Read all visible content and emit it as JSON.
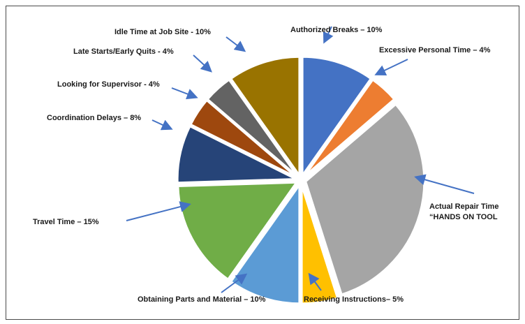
{
  "chart_data": {
    "type": "pie",
    "title": "",
    "slices": [
      {
        "label": "Authorized Breaks – 10%",
        "value": 10,
        "color": "#4472c4"
      },
      {
        "label": "Excessive Personal Time – 4%",
        "value": 4,
        "color": "#ed7d31"
      },
      {
        "label": "Actual Repair Time",
        "label2": "“HANDS ON TOOL",
        "value": 32,
        "color": "#a5a5a5"
      },
      {
        "label": "Receiving Instructions– 5%",
        "value": 5,
        "color": "#ffc000"
      },
      {
        "label": "Obtaining Parts and Material – 10%",
        "value": 10,
        "color": "#5b9bd5"
      },
      {
        "label": "Travel Time – 15%",
        "value": 15,
        "color": "#70ad47"
      },
      {
        "label": "Coordination Delays – 8%",
        "value": 8,
        "color": "#264478"
      },
      {
        "label": "Looking for Supervisor - 4%",
        "value": 4,
        "color": "#9e480e"
      },
      {
        "label": "Late Starts/Early Quits - 4%",
        "value": 4,
        "color": "#636363"
      },
      {
        "label": "Idle Time at Job Site - 10%",
        "value": 10,
        "color": "#997300"
      }
    ],
    "legend": "none"
  }
}
